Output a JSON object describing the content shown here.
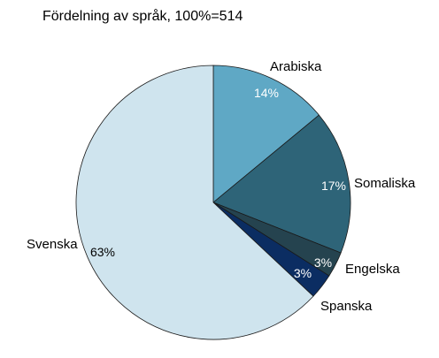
{
  "chart_data": {
    "type": "pie",
    "title": "Fördelning av språk, 100%=514",
    "categories": [
      "Arabiska",
      "Somaliska",
      "Engelska",
      "Spanska",
      "Svenska"
    ],
    "values": [
      14,
      17,
      3,
      3,
      63
    ],
    "value_labels": [
      "14%",
      "17%",
      "3%",
      "3%",
      "63%"
    ],
    "colors": [
      "#5fa8c5",
      "#2e6478",
      "#25434f",
      "#0b2d62",
      "#cfe4ee"
    ],
    "label_colors": [
      "#ffffff",
      "#ffffff",
      "#ffffff",
      "#ffffff",
      "#000000"
    ],
    "legend": "none"
  }
}
